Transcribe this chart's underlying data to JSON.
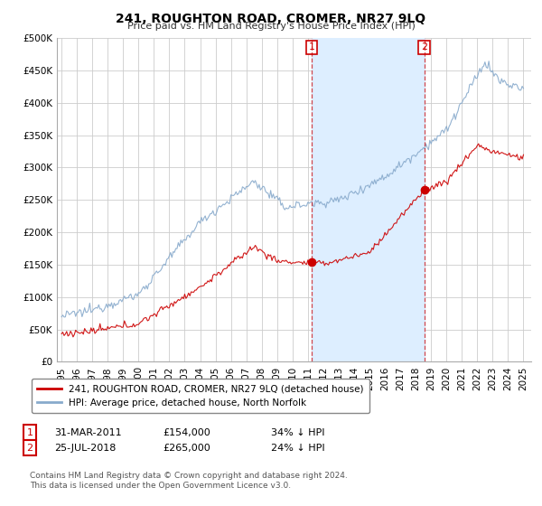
{
  "title": "241, ROUGHTON ROAD, CROMER, NR27 9LQ",
  "subtitle": "Price paid vs. HM Land Registry's House Price Index (HPI)",
  "ylabel_ticks": [
    "£0",
    "£50K",
    "£100K",
    "£150K",
    "£200K",
    "£250K",
    "£300K",
    "£350K",
    "£400K",
    "£450K",
    "£500K"
  ],
  "ytick_values": [
    0,
    50000,
    100000,
    150000,
    200000,
    250000,
    300000,
    350000,
    400000,
    450000,
    500000
  ],
  "xlim_start": 1994.7,
  "xlim_end": 2025.5,
  "ylim_min": 0,
  "ylim_max": 500000,
  "bg_color": "#ffffff",
  "shade_color": "#ddeeff",
  "red_color": "#cc0000",
  "blue_color": "#88aacc",
  "marker1_date": 2011.25,
  "marker1_price": 154000,
  "marker2_date": 2018.56,
  "marker2_price": 265000,
  "legend_label1": "241, ROUGHTON ROAD, CROMER, NR27 9LQ (detached house)",
  "legend_label2": "HPI: Average price, detached house, North Norfolk",
  "footer": "Contains HM Land Registry data © Crown copyright and database right 2024.\nThis data is licensed under the Open Government Licence v3.0.",
  "xtick_years": [
    1995,
    1996,
    1997,
    1998,
    1999,
    2000,
    2001,
    2002,
    2003,
    2004,
    2005,
    2006,
    2007,
    2008,
    2009,
    2010,
    2011,
    2012,
    2013,
    2014,
    2015,
    2016,
    2017,
    2018,
    2019,
    2020,
    2021,
    2022,
    2023,
    2024,
    2025
  ]
}
